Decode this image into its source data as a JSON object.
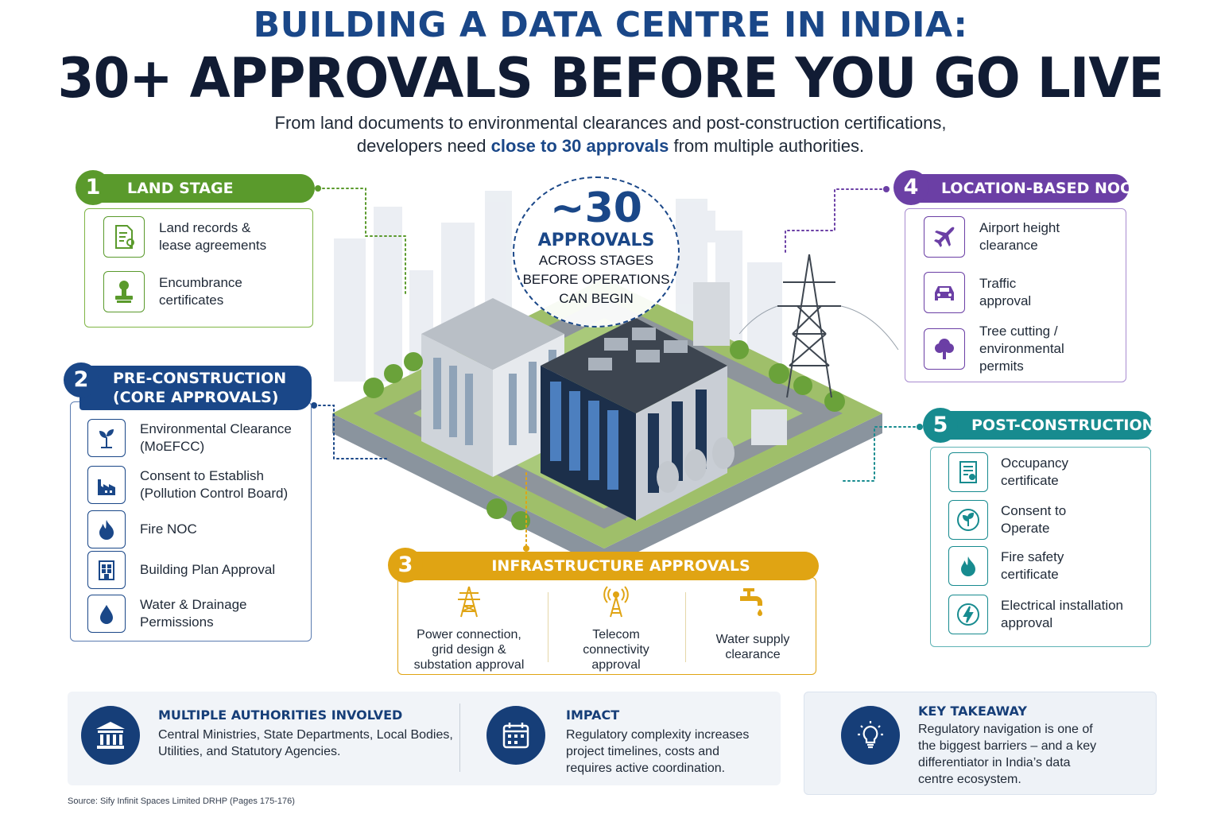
{
  "header": {
    "title_line1": "BUILDING A DATA CENTRE IN INDIA:",
    "title_line2": "30+ APPROVALS BEFORE YOU GO LIVE",
    "subtitle_line1": "From land documents to environmental clearances and post-construction certifications,",
    "subtitle_pre": "developers need ",
    "subtitle_highlight": "close to 30 approvals",
    "subtitle_post": " from multiple authorities."
  },
  "callout": {
    "number": "~30",
    "label": "APPROVALS",
    "line1": "ACROSS STAGES",
    "line2": "BEFORE OPERATIONS",
    "line3": "CAN BEGIN"
  },
  "stages": {
    "land": {
      "number": "1",
      "title": "LAND STAGE",
      "color": "#5a9a2c",
      "items": [
        {
          "line1": "Land records &",
          "line2": "lease agreements",
          "icon": "document-location-icon"
        },
        {
          "line1": "Encumbrance",
          "line2": "certificates",
          "icon": "stamp-icon"
        }
      ]
    },
    "pre": {
      "number": "2",
      "title_line1": "PRE-CONSTRUCTION",
      "title_line2": "(CORE APPROVALS)",
      "color": "#1a4788",
      "items": [
        {
          "line1": "Environmental Clearance",
          "line2": "(MoEFCC)",
          "icon": "plant-icon"
        },
        {
          "line1": "Consent to Establish",
          "line2": "(Pollution Control Board)",
          "icon": "factory-icon"
        },
        {
          "line1": "Fire NOC",
          "line2": "",
          "icon": "flame-icon"
        },
        {
          "line1": "Building Plan Approval",
          "line2": "",
          "icon": "building-plan-icon"
        },
        {
          "line1": "Water & Drainage",
          "line2": "Permissions",
          "icon": "water-drop-icon"
        }
      ]
    },
    "infra": {
      "number": "3",
      "title": "INFRASTRUCTURE APPROVALS",
      "color": "#e0a413",
      "items": [
        {
          "line1": "Power connection,",
          "line2": "grid design &",
          "line3": "substation approval",
          "icon": "power-tower-icon"
        },
        {
          "line1": "Telecom",
          "line2": "connectivity",
          "line3": "approval",
          "icon": "antenna-icon"
        },
        {
          "line1": "Water supply",
          "line2": "clearance",
          "line3": "",
          "icon": "water-tap-icon"
        }
      ]
    },
    "location": {
      "number": "4",
      "title": "LOCATION-BASED NOCs",
      "color": "#6b3fa5",
      "items": [
        {
          "line1": "Airport height",
          "line2": "clearance",
          "line3": "",
          "icon": "airplane-icon"
        },
        {
          "line1": "Traffic",
          "line2": "approval",
          "line3": "",
          "icon": "car-icon"
        },
        {
          "line1": "Tree cutting /",
          "line2": "environmental",
          "line3": "permits",
          "icon": "tree-icon"
        }
      ]
    },
    "post": {
      "number": "5",
      "title": "POST-CONSTRUCTION",
      "color": "#178b8f",
      "items": [
        {
          "line1": "Occupancy",
          "line2": "certificate",
          "icon": "certificate-icon"
        },
        {
          "line1": "Consent to",
          "line2": "Operate",
          "icon": "leaf-badge-icon"
        },
        {
          "line1": "Fire safety",
          "line2": "certificate",
          "icon": "flame-icon"
        },
        {
          "line1": "Electrical installation",
          "line2": "approval",
          "icon": "lightning-icon"
        }
      ]
    }
  },
  "bottom": {
    "authorities": {
      "title": "MULTIPLE AUTHORITIES INVOLVED",
      "line1": "Central Ministries, State Departments, Local Bodies,",
      "line2": "Utilities, and Statutory Agencies.",
      "icon": "government-building-icon"
    },
    "impact": {
      "title": "IMPACT",
      "line1": "Regulatory complexity increases",
      "line2": "project timelines, costs and",
      "line3": "requires active coordination.",
      "icon": "calendar-icon"
    },
    "takeaway": {
      "title": "KEY TAKEAWAY",
      "line1": "Regulatory navigation is one of",
      "line2": "the biggest barriers – and a key",
      "line3": "differentiator in India’s data",
      "line4": "centre ecosystem.",
      "icon": "lightbulb-icon"
    }
  },
  "source": "Source: Sify Infinit Spaces Limited DRHP (Pages 175-176)"
}
